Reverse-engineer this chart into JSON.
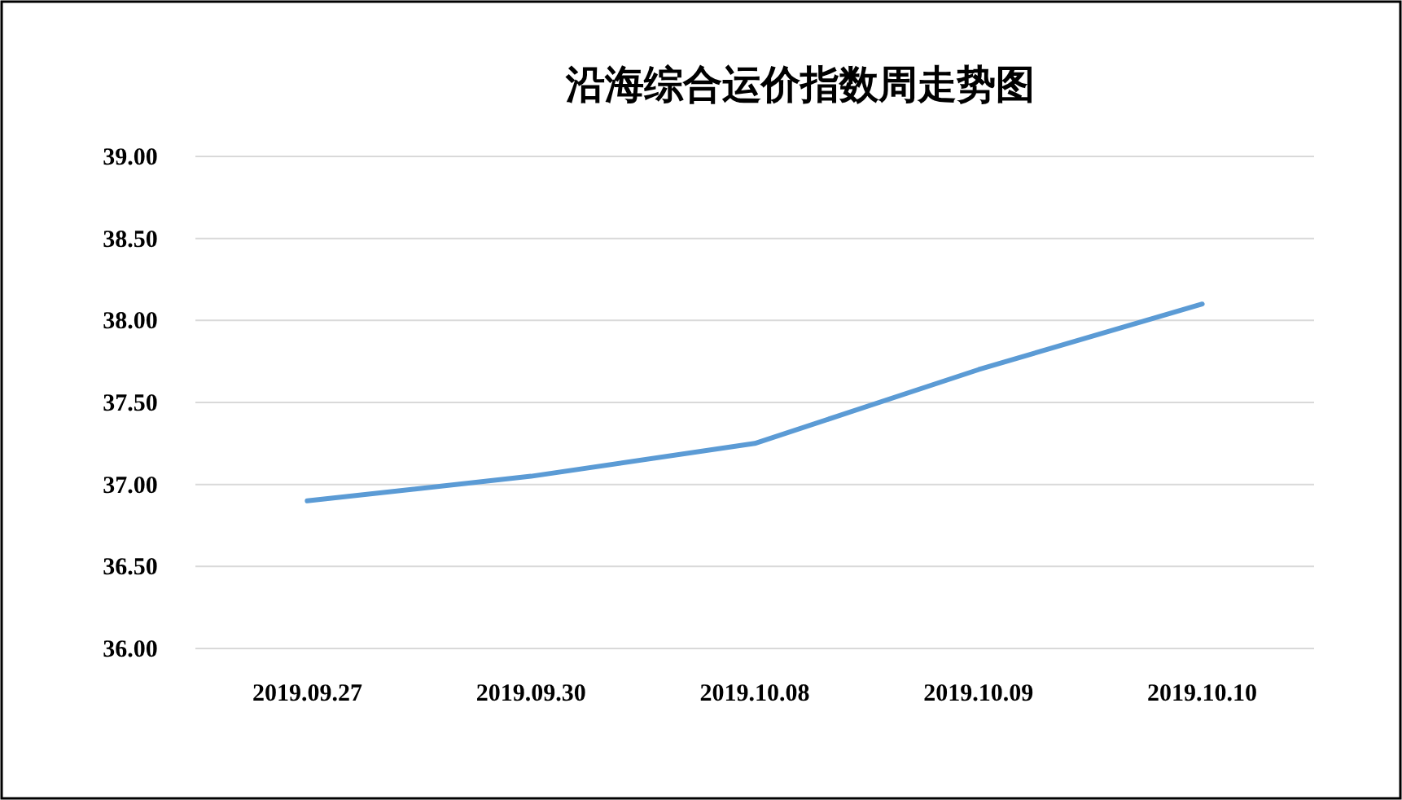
{
  "chart_data": {
    "type": "line",
    "title": "沿海综合运价指数周走势图",
    "categories": [
      "2019.09.27",
      "2019.09.30",
      "2019.10.08",
      "2019.10.09",
      "2019.10.10"
    ],
    "values": [
      36.9,
      37.05,
      37.25,
      37.7,
      38.1
    ],
    "color": "#5b9bd5",
    "ylim": [
      36,
      39
    ],
    "yticks": [
      {
        "value": 36,
        "label": "36.00"
      },
      {
        "value": 36.5,
        "label": "36.50"
      },
      {
        "value": 37,
        "label": "37.00"
      },
      {
        "value": 37.5,
        "label": "37.50"
      },
      {
        "value": 38,
        "label": "38.00"
      },
      {
        "value": 38.5,
        "label": "38.50"
      },
      {
        "value": 39,
        "label": "39.00"
      }
    ],
    "grid": "y"
  }
}
